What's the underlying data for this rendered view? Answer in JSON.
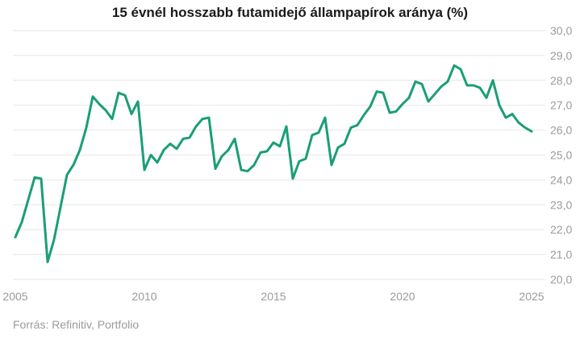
{
  "chart_data": {
    "type": "line",
    "title": "15 évnél hosszabb futamidejő állampapírok aránya (%)",
    "source": "Forrás: Refinitiv, Portfolio",
    "xlabel": "",
    "ylabel": "",
    "xlim": [
      2005,
      2025
    ],
    "ylim": [
      20,
      30
    ],
    "x_ticks": [
      2005,
      2010,
      2015,
      2020,
      2025
    ],
    "y_ticks": [
      "20,0",
      "21,0",
      "22,0",
      "23,0",
      "24,0",
      "25,0",
      "26,0",
      "27,0",
      "28,0",
      "29,0",
      "30,0"
    ],
    "y_axis_side": "right",
    "grid": "horizontal",
    "line_color": "#1a9e77",
    "series": [
      {
        "x": [
          2005.0,
          2005.25,
          2005.5,
          2005.75,
          2006.0,
          2006.25,
          2006.5,
          2006.75,
          2007.0,
          2007.25,
          2007.5,
          2007.75,
          2008.0,
          2008.25,
          2008.5,
          2008.75,
          2009.0,
          2009.25,
          2009.5,
          2009.75,
          2010.0,
          2010.25,
          2010.5,
          2010.75,
          2011.0,
          2011.25,
          2011.5,
          2011.75,
          2012.0,
          2012.25,
          2012.5,
          2012.75,
          2013.0,
          2013.25,
          2013.5,
          2013.75,
          2014.0,
          2014.25,
          2014.5,
          2014.75,
          2015.0,
          2015.25,
          2015.5,
          2015.75,
          2016.0,
          2016.25,
          2016.5,
          2016.75,
          2017.0,
          2017.25,
          2017.5,
          2017.75,
          2018.0,
          2018.25,
          2018.5,
          2018.75,
          2019.0,
          2019.25,
          2019.5,
          2019.75,
          2020.0,
          2020.25,
          2020.5,
          2020.75,
          2021.0,
          2021.25,
          2021.5,
          2021.75,
          2022.0,
          2022.25,
          2022.5,
          2022.75,
          2023.0,
          2023.25,
          2023.5,
          2023.75,
          2024.0,
          2024.25,
          2024.5,
          2024.75,
          2025.0
        ],
        "values": [
          21.7,
          22.3,
          23.2,
          24.1,
          24.05,
          20.7,
          21.6,
          22.9,
          24.2,
          24.6,
          25.2,
          26.1,
          27.35,
          27.05,
          26.8,
          26.45,
          27.5,
          27.4,
          26.65,
          27.15,
          24.4,
          25.0,
          24.7,
          25.2,
          25.45,
          25.25,
          25.65,
          25.7,
          26.15,
          26.45,
          26.5,
          24.45,
          24.95,
          25.2,
          25.65,
          24.4,
          24.35,
          24.6,
          25.1,
          25.15,
          25.5,
          25.35,
          26.15,
          24.05,
          24.75,
          24.85,
          25.8,
          25.9,
          26.5,
          24.6,
          25.3,
          25.45,
          26.1,
          26.2,
          26.6,
          26.95,
          27.55,
          27.5,
          26.7,
          26.75,
          27.05,
          27.3,
          27.95,
          27.85,
          27.15,
          27.45,
          27.75,
          27.95,
          28.6,
          28.45,
          27.8,
          27.8,
          27.7,
          27.3,
          28.0,
          27.0,
          26.5,
          26.65,
          26.3,
          26.1,
          25.95
        ]
      }
    ]
  }
}
